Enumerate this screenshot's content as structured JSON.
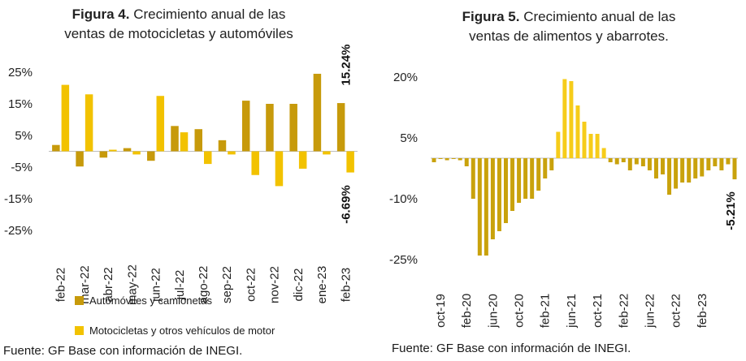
{
  "chart_data": [
    {
      "type": "bar",
      "title_prefix": "Figura 4.",
      "title": "Crecimiento anual de las ventas de motocicletas y automóviles",
      "title_line1": "Crecimiento anual de las",
      "title_line2": "ventas de motocicletas y automóviles",
      "categories": [
        "feb-22",
        "mar-22",
        "abr-22",
        "may-22",
        "jun-22",
        "jul-22",
        "ago-22",
        "sep-22",
        "oct-22",
        "nov-22",
        "dic-22",
        "ene-23",
        "feb-23"
      ],
      "series": [
        {
          "name": "Automóviles y camionetas",
          "color": "#c79a0b",
          "values": [
            2.0,
            -4.8,
            -2.0,
            1.0,
            -3.0,
            8.0,
            7.0,
            3.5,
            16.0,
            15.0,
            15.0,
            24.5,
            15.24
          ]
        },
        {
          "name": "Motocicletas y otros vehículos de motor",
          "color": "#f2c200",
          "values": [
            21.0,
            18.0,
            0.5,
            -1.0,
            17.5,
            6.0,
            -4.0,
            -1.0,
            -7.5,
            -11.0,
            -5.5,
            -1.0,
            -6.69
          ]
        }
      ],
      "yticks": [
        "25%",
        "15%",
        "5%",
        "-5%",
        "-15%",
        "-25%"
      ],
      "ylim": [
        -25,
        25
      ],
      "annotations": [
        "15.24%",
        "-6.69%"
      ]
    },
    {
      "type": "bar",
      "title_prefix": "Figura 5.",
      "title": "Crecimiento anual de las ventas de alimentos y abarrotes.",
      "title_line1": "Crecimiento anual de las",
      "title_line2": "ventas de alimentos y abarrotes.",
      "xtick_labels": [
        "oct-19",
        "feb-20",
        "jun-20",
        "oct-20",
        "feb-21",
        "jun-21",
        "oct-21",
        "feb-22",
        "jun-22",
        "oct-22",
        "feb-23"
      ],
      "series": [
        {
          "color": "#c9a20c",
          "highlight_color": "#f6cc1a",
          "values": [
            -1.0,
            0.0,
            -0.5,
            0.0,
            -0.5,
            -2.0,
            -10.0,
            -24.0,
            -24.0,
            -20.0,
            -18.0,
            -16.0,
            -13.0,
            -11.0,
            -10.0,
            -10.0,
            -8.0,
            -5.0,
            -3.0,
            6.5,
            19.5,
            19.0,
            13.0,
            9.0,
            6.0,
            6.0,
            2.5,
            -1.0,
            -1.5,
            -1.0,
            -3.0,
            -1.5,
            -2.0,
            -3.0,
            -5.0,
            -4.0,
            -9.0,
            -7.5,
            -6.0,
            -6.0,
            -5.0,
            -4.5,
            -3.0,
            -2.0,
            -3.0,
            -1.5,
            -5.21
          ],
          "highlight_range": [
            19,
            26
          ]
        }
      ],
      "yticks": [
        "20%",
        "5%",
        "-10%",
        "-25%"
      ],
      "ylim": [
        -25,
        20
      ],
      "annotations": [
        "-5.21%"
      ]
    }
  ],
  "legend": {
    "item1": "Automóviles y camionetas",
    "item2": "Motocicletas y otros vehículos de motor"
  },
  "source_left": "Fuente: GF Base con información de INEGI.",
  "source_right": "Fuente: GF Base con información de INEGI."
}
